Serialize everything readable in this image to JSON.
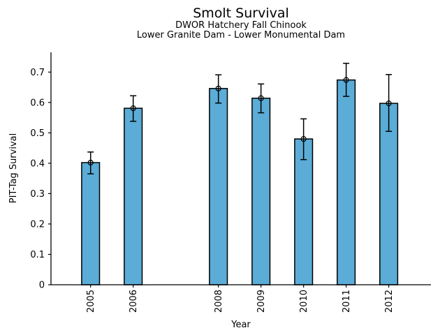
{
  "chart_data": {
    "type": "bar",
    "title": "Smolt Survival",
    "subtitle1": "DWOR Hatchery Fall Chinook",
    "subtitle2": "Lower Granite Dam - Lower Monumental Dam",
    "xlabel": "Year",
    "ylabel": "PIT-Tag Survival",
    "categories": [
      "2005",
      "2006",
      "2008",
      "2009",
      "2010",
      "2011",
      "2012"
    ],
    "x": [
      2005,
      2006,
      2008,
      2009,
      2010,
      2011,
      2012
    ],
    "values": [
      0.402,
      0.581,
      0.646,
      0.614,
      0.48,
      0.674,
      0.597
    ],
    "error_low": [
      0.365,
      0.538,
      0.598,
      0.566,
      0.412,
      0.62,
      0.505
    ],
    "error_high": [
      0.437,
      0.622,
      0.691,
      0.661,
      0.546,
      0.729,
      0.692
    ],
    "y_ticks": [
      0,
      0.1,
      0.2,
      0.3,
      0.4,
      0.5,
      0.6,
      0.7
    ],
    "y_tick_labels": [
      "0",
      "0.1",
      "0.2",
      "0.3",
      "0.4",
      "0.5",
      "0.6",
      "0.7"
    ],
    "xlim": [
      2004.07,
      2012.99
    ],
    "ylim": [
      0,
      0.765
    ],
    "bar_color": "#5BACD6",
    "bar_edge_color": "#000000",
    "error_color": "#000000",
    "marker": "open-circle",
    "grid": false,
    "legend": "none",
    "x_tick_rotation_deg": 90
  }
}
